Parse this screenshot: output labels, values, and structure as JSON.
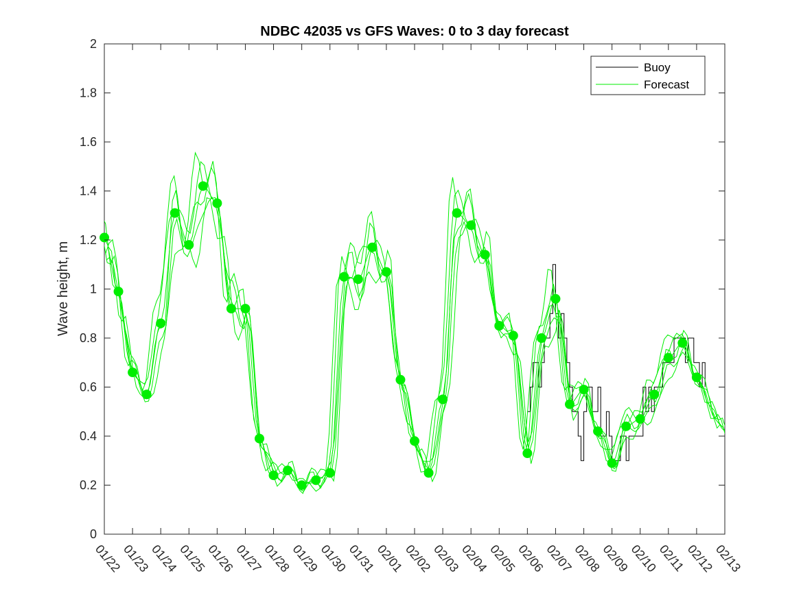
{
  "chart_data": {
    "type": "line",
    "title": "NDBC 42035 vs GFS Waves: 0 to 3 day forecast",
    "xlabel": "",
    "ylabel": "Wave height, m",
    "xlim": [
      0,
      22
    ],
    "ylim": [
      0,
      2
    ],
    "grid": false,
    "legend_location": "top-right",
    "x_tick_labels": [
      "01/22",
      "01/23",
      "01/24",
      "01/25",
      "01/26",
      "01/27",
      "01/28",
      "01/29",
      "01/30",
      "01/31",
      "02/01",
      "02/02",
      "02/03",
      "02/04",
      "02/05",
      "02/06",
      "02/07",
      "02/08",
      "02/09",
      "02/10",
      "02/11",
      "02/12",
      "02/13"
    ],
    "y_tick_labels": [
      "0",
      "0.2",
      "0.4",
      "0.6",
      "0.8",
      "1",
      "1.2",
      "1.4",
      "1.6",
      "1.8",
      "2"
    ],
    "y_ticks": [
      0,
      0.2,
      0.4,
      0.6,
      0.8,
      1,
      1.2,
      1.4,
      1.6,
      1.8,
      2
    ],
    "legend": [
      {
        "name": "Buoy",
        "color": "#000000"
      },
      {
        "name": "Forecast",
        "color": "#00ee00"
      }
    ],
    "series": [
      {
        "name": "Buoy",
        "color": "#000000",
        "x": [
          15.0,
          15.1,
          15.2,
          15.3,
          15.4,
          15.5,
          15.6,
          15.7,
          15.8,
          15.9,
          16.0,
          16.1,
          16.2,
          16.3,
          16.4,
          16.5,
          16.6,
          16.7,
          16.8,
          16.9,
          17.0,
          17.1,
          17.2,
          17.3,
          17.4,
          17.5,
          17.6,
          17.7,
          17.8,
          17.9,
          18.0,
          18.1,
          18.2,
          18.3,
          18.4,
          18.5,
          18.6,
          18.7,
          18.8,
          18.9,
          19.0,
          19.1,
          19.2,
          19.3,
          19.4,
          19.5,
          19.6,
          19.7,
          19.8,
          19.9,
          20.0,
          20.1,
          20.2,
          20.3,
          20.4,
          20.5,
          20.6,
          20.7,
          20.8,
          20.9,
          21.0,
          21.1,
          21.2,
          21.3
        ],
        "values": [
          0.5,
          0.6,
          0.7,
          0.7,
          0.6,
          0.7,
          0.8,
          0.8,
          0.9,
          1.1,
          0.9,
          0.8,
          0.9,
          0.8,
          0.7,
          0.6,
          0.5,
          0.5,
          0.4,
          0.3,
          0.5,
          0.6,
          0.6,
          0.5,
          0.5,
          0.6,
          0.4,
          0.4,
          0.5,
          0.4,
          0.3,
          0.3,
          0.3,
          0.4,
          0.4,
          0.3,
          0.4,
          0.4,
          0.4,
          0.4,
          0.4,
          0.6,
          0.5,
          0.6,
          0.5,
          0.6,
          0.6,
          0.6,
          0.7,
          0.7,
          0.7,
          0.7,
          0.8,
          0.8,
          0.8,
          0.8,
          0.7,
          0.8,
          0.8,
          0.7,
          0.7,
          0.6,
          0.7,
          0.6
        ]
      },
      {
        "name": "Forecast",
        "color": "#00ee00",
        "x": [
          0,
          0.5,
          1,
          1.5,
          2,
          2.5,
          3,
          3.5,
          4,
          4.5,
          5,
          5.5,
          6,
          6.5,
          7,
          7.5,
          8,
          8.5,
          9,
          9.5,
          10,
          10.5,
          11,
          11.5,
          12,
          12.5,
          13,
          13.5,
          14,
          14.5,
          15,
          15.5,
          16,
          16.5,
          17,
          17.5,
          18,
          18.5,
          19,
          19.5,
          20,
          20.5,
          21,
          21.5,
          22
        ],
        "values": [
          1.21,
          0.99,
          0.66,
          0.57,
          0.86,
          1.31,
          1.18,
          1.42,
          1.35,
          0.92,
          0.92,
          0.39,
          0.24,
          0.26,
          0.2,
          0.22,
          0.25,
          1.05,
          1.04,
          1.17,
          1.07,
          0.63,
          0.38,
          0.25,
          0.55,
          1.31,
          1.26,
          1.14,
          0.85,
          0.81,
          0.33,
          0.8,
          0.96,
          0.53,
          0.59,
          0.42,
          0.29,
          0.44,
          0.47,
          0.57,
          0.72,
          0.78,
          0.64,
          0.52,
          0.42
        ]
      }
    ],
    "markers": {
      "name": "Forecast points",
      "color": "#00ee00",
      "x": [
        0,
        0.5,
        1,
        1.5,
        2,
        2.5,
        3,
        3.5,
        4,
        4.5,
        5,
        5.5,
        6,
        6.5,
        7,
        7.5,
        8,
        8.5,
        9,
        9.5,
        10,
        10.5,
        11,
        11.5,
        12,
        12.5,
        13,
        13.5,
        14,
        14.5,
        15,
        15.5,
        16,
        16.5,
        17,
        17.5,
        18,
        18.5,
        19,
        19.5,
        20,
        20.5,
        21
      ],
      "values": [
        1.21,
        0.99,
        0.66,
        0.57,
        0.86,
        1.31,
        1.18,
        1.42,
        1.35,
        0.92,
        0.92,
        0.39,
        0.24,
        0.26,
        0.2,
        0.22,
        0.25,
        1.05,
        1.04,
        1.17,
        1.07,
        0.63,
        0.38,
        0.25,
        0.55,
        1.31,
        1.26,
        1.14,
        0.85,
        0.81,
        0.33,
        0.8,
        0.96,
        0.53,
        0.59,
        0.42,
        0.29,
        0.44,
        0.47,
        0.57,
        0.72,
        0.78,
        0.64
      ]
    }
  }
}
